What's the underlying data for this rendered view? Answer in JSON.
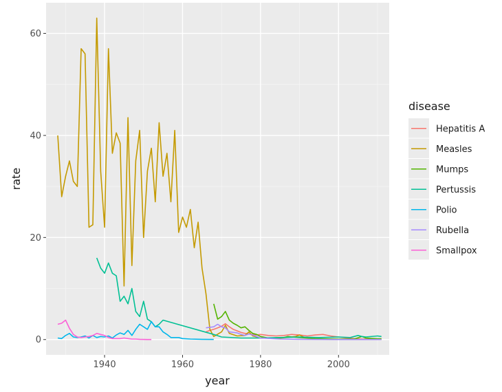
{
  "chart_data": {
    "type": "line",
    "xlabel": "year",
    "ylabel": "rate",
    "xlim": [
      1925,
      2013
    ],
    "ylim": [
      -3,
      66
    ],
    "x_ticks": [
      1940,
      1960,
      1980,
      2000
    ],
    "x_tick_labels": [
      "1940",
      "1960",
      "1980",
      "2000"
    ],
    "y_ticks": [
      0,
      20,
      40,
      60
    ],
    "y_tick_labels": [
      "0",
      "20",
      "40",
      "60"
    ],
    "grid": true,
    "legend_position": "right",
    "legend_title": "disease",
    "series": [
      {
        "name": "Hepatitis A",
        "color": "#F8766D",
        "points": [
          [
            1966,
            1.5
          ],
          [
            1967,
            1.8
          ],
          [
            1968,
            2.0
          ],
          [
            1969,
            2.3
          ],
          [
            1970,
            2.6
          ],
          [
            1971,
            3.1
          ],
          [
            1972,
            2.5
          ],
          [
            1973,
            2.0
          ],
          [
            1974,
            1.7
          ],
          [
            1975,
            1.4
          ],
          [
            1976,
            1.2
          ],
          [
            1977,
            1.1
          ],
          [
            1978,
            1.0
          ],
          [
            1979,
            0.9
          ],
          [
            1980,
            1.0
          ],
          [
            1982,
            0.8
          ],
          [
            1984,
            0.7
          ],
          [
            1986,
            0.8
          ],
          [
            1988,
            1.0
          ],
          [
            1990,
            0.9
          ],
          [
            1992,
            0.7
          ],
          [
            1994,
            0.9
          ],
          [
            1996,
            1.0
          ],
          [
            1998,
            0.7
          ],
          [
            2000,
            0.5
          ],
          [
            2002,
            0.3
          ],
          [
            2004,
            0.2
          ],
          [
            2006,
            0.1
          ],
          [
            2008,
            0.1
          ],
          [
            2011,
            0.1
          ]
        ]
      },
      {
        "name": "Measles",
        "color": "#C49A00",
        "points": [
          [
            1928,
            40
          ],
          [
            1929,
            28
          ],
          [
            1930,
            32
          ],
          [
            1931,
            35
          ],
          [
            1932,
            31
          ],
          [
            1933,
            30
          ],
          [
            1934,
            57
          ],
          [
            1935,
            56
          ],
          [
            1936,
            22
          ],
          [
            1937,
            22.5
          ],
          [
            1938,
            63
          ],
          [
            1939,
            33
          ],
          [
            1940,
            22
          ],
          [
            1941,
            57
          ],
          [
            1942,
            36.5
          ],
          [
            1943,
            40.5
          ],
          [
            1944,
            38.5
          ],
          [
            1945,
            10.5
          ],
          [
            1946,
            43.5
          ],
          [
            1947,
            14.5
          ],
          [
            1948,
            35
          ],
          [
            1949,
            41
          ],
          [
            1950,
            20
          ],
          [
            1951,
            33
          ],
          [
            1952,
            37.5
          ],
          [
            1953,
            27
          ],
          [
            1954,
            42.5
          ],
          [
            1955,
            32
          ],
          [
            1956,
            36.5
          ],
          [
            1957,
            27
          ],
          [
            1958,
            41
          ],
          [
            1959,
            21
          ],
          [
            1960,
            24
          ],
          [
            1961,
            22
          ],
          [
            1962,
            25.5
          ],
          [
            1963,
            18
          ],
          [
            1964,
            23
          ],
          [
            1965,
            14
          ],
          [
            1966,
            9
          ],
          [
            1967,
            2.0
          ],
          [
            1968,
            0.6
          ],
          [
            1970,
            1.5
          ],
          [
            1971,
            2.8
          ],
          [
            1972,
            1.2
          ],
          [
            1974,
            0.7
          ],
          [
            1976,
            0.8
          ],
          [
            1977,
            1.5
          ],
          [
            1978,
            0.7
          ],
          [
            1980,
            0.3
          ],
          [
            1984,
            0.2
          ],
          [
            1989,
            0.6
          ],
          [
            1990,
            0.9
          ],
          [
            1991,
            0.5
          ],
          [
            1994,
            0.1
          ],
          [
            2000,
            0.02
          ],
          [
            2005,
            0.02
          ],
          [
            2011,
            0.05
          ]
        ]
      },
      {
        "name": "Mumps",
        "color": "#53B400",
        "points": [
          [
            1968,
            7
          ],
          [
            1969,
            4
          ],
          [
            1970,
            4.5
          ],
          [
            1971,
            5.5
          ],
          [
            1972,
            3.8
          ],
          [
            1973,
            3.2
          ],
          [
            1974,
            2.8
          ],
          [
            1975,
            2.3
          ],
          [
            1976,
            2.5
          ],
          [
            1977,
            1.8
          ],
          [
            1978,
            1.2
          ],
          [
            1979,
            1.0
          ],
          [
            1980,
            0.6
          ],
          [
            1982,
            0.3
          ],
          [
            1986,
            0.4
          ],
          [
            1987,
            0.6
          ],
          [
            1988,
            0.5
          ],
          [
            1990,
            0.4
          ],
          [
            1994,
            0.2
          ],
          [
            2000,
            0.1
          ],
          [
            2004,
            0.1
          ],
          [
            2006,
            0.6
          ],
          [
            2007,
            0.3
          ],
          [
            2010,
            0.15
          ],
          [
            2011,
            0.15
          ]
        ]
      },
      {
        "name": "Pertussis",
        "color": "#00C094",
        "points": [
          [
            1938,
            16
          ],
          [
            1939,
            14
          ],
          [
            1940,
            13
          ],
          [
            1941,
            15
          ],
          [
            1942,
            13
          ],
          [
            1943,
            12.5
          ],
          [
            1944,
            7.5
          ],
          [
            1945,
            8.5
          ],
          [
            1946,
            7
          ],
          [
            1947,
            10
          ],
          [
            1948,
            5.5
          ],
          [
            1949,
            4.5
          ],
          [
            1950,
            7.5
          ],
          [
            1951,
            4
          ],
          [
            1952,
            3.5
          ],
          [
            1953,
            2.5
          ],
          [
            1954,
            3
          ],
          [
            1955,
            3.8
          ],
          [
            1968,
            1
          ],
          [
            1970,
            0.5
          ],
          [
            1975,
            0.3
          ],
          [
            1980,
            0.3
          ],
          [
            1985,
            0.4
          ],
          [
            1990,
            0.5
          ],
          [
            1995,
            0.4
          ],
          [
            2000,
            0.5
          ],
          [
            2003,
            0.4
          ],
          [
            2005,
            0.8
          ],
          [
            2006,
            0.6
          ],
          [
            2007,
            0.5
          ],
          [
            2010,
            0.7
          ],
          [
            2011,
            0.6
          ]
        ]
      },
      {
        "name": "Polio",
        "color": "#00B6EB",
        "points": [
          [
            1928,
            0.3
          ],
          [
            1929,
            0.2
          ],
          [
            1930,
            0.8
          ],
          [
            1931,
            1.2
          ],
          [
            1932,
            0.5
          ],
          [
            1933,
            0.4
          ],
          [
            1934,
            0.5
          ],
          [
            1935,
            0.7
          ],
          [
            1936,
            0.3
          ],
          [
            1937,
            0.8
          ],
          [
            1938,
            0.4
          ],
          [
            1939,
            0.6
          ],
          [
            1940,
            0.5
          ],
          [
            1941,
            0.7
          ],
          [
            1942,
            0.3
          ],
          [
            1943,
            0.9
          ],
          [
            1944,
            1.3
          ],
          [
            1945,
            1.0
          ],
          [
            1946,
            1.8
          ],
          [
            1947,
            0.8
          ],
          [
            1948,
            2.0
          ],
          [
            1949,
            3.0
          ],
          [
            1950,
            2.5
          ],
          [
            1951,
            2.0
          ],
          [
            1952,
            3.5
          ],
          [
            1953,
            2.5
          ],
          [
            1954,
            2.5
          ],
          [
            1955,
            1.5
          ],
          [
            1956,
            1.0
          ],
          [
            1957,
            0.4
          ],
          [
            1958,
            0.4
          ],
          [
            1959,
            0.4
          ],
          [
            1960,
            0.2
          ],
          [
            1962,
            0.1
          ],
          [
            1965,
            0.05
          ],
          [
            1968,
            0.02
          ]
        ]
      },
      {
        "name": "Rubella",
        "color": "#A58AFF",
        "points": [
          [
            1966,
            2.3
          ],
          [
            1968,
            2.5
          ],
          [
            1969,
            3.0
          ],
          [
            1970,
            2.5
          ],
          [
            1971,
            2.3
          ],
          [
            1972,
            1.5
          ],
          [
            1974,
            1.3
          ],
          [
            1975,
            1.0
          ],
          [
            1976,
            0.8
          ],
          [
            1977,
            1.1
          ],
          [
            1978,
            0.9
          ],
          [
            1979,
            0.6
          ],
          [
            1980,
            0.3
          ],
          [
            1985,
            0.1
          ],
          [
            1990,
            0.05
          ],
          [
            1995,
            0.02
          ],
          [
            2000,
            0.01
          ],
          [
            2011,
            0.01
          ]
        ]
      },
      {
        "name": "Smallpox",
        "color": "#FB61D7",
        "points": [
          [
            1928,
            3
          ],
          [
            1929,
            3.2
          ],
          [
            1930,
            3.8
          ],
          [
            1931,
            2.2
          ],
          [
            1932,
            1.0
          ],
          [
            1933,
            0.5
          ],
          [
            1934,
            0.4
          ],
          [
            1935,
            0.5
          ],
          [
            1936,
            0.6
          ],
          [
            1937,
            0.8
          ],
          [
            1938,
            1.2
          ],
          [
            1939,
            1.0
          ],
          [
            1940,
            0.8
          ],
          [
            1941,
            0.4
          ],
          [
            1942,
            0.2
          ],
          [
            1943,
            0.2
          ],
          [
            1944,
            0.2
          ],
          [
            1945,
            0.3
          ],
          [
            1946,
            0.2
          ],
          [
            1947,
            0.1
          ],
          [
            1948,
            0.1
          ],
          [
            1949,
            0.05
          ],
          [
            1950,
            0.02
          ],
          [
            1951,
            0.01
          ],
          [
            1952,
            0.01
          ]
        ]
      }
    ]
  }
}
